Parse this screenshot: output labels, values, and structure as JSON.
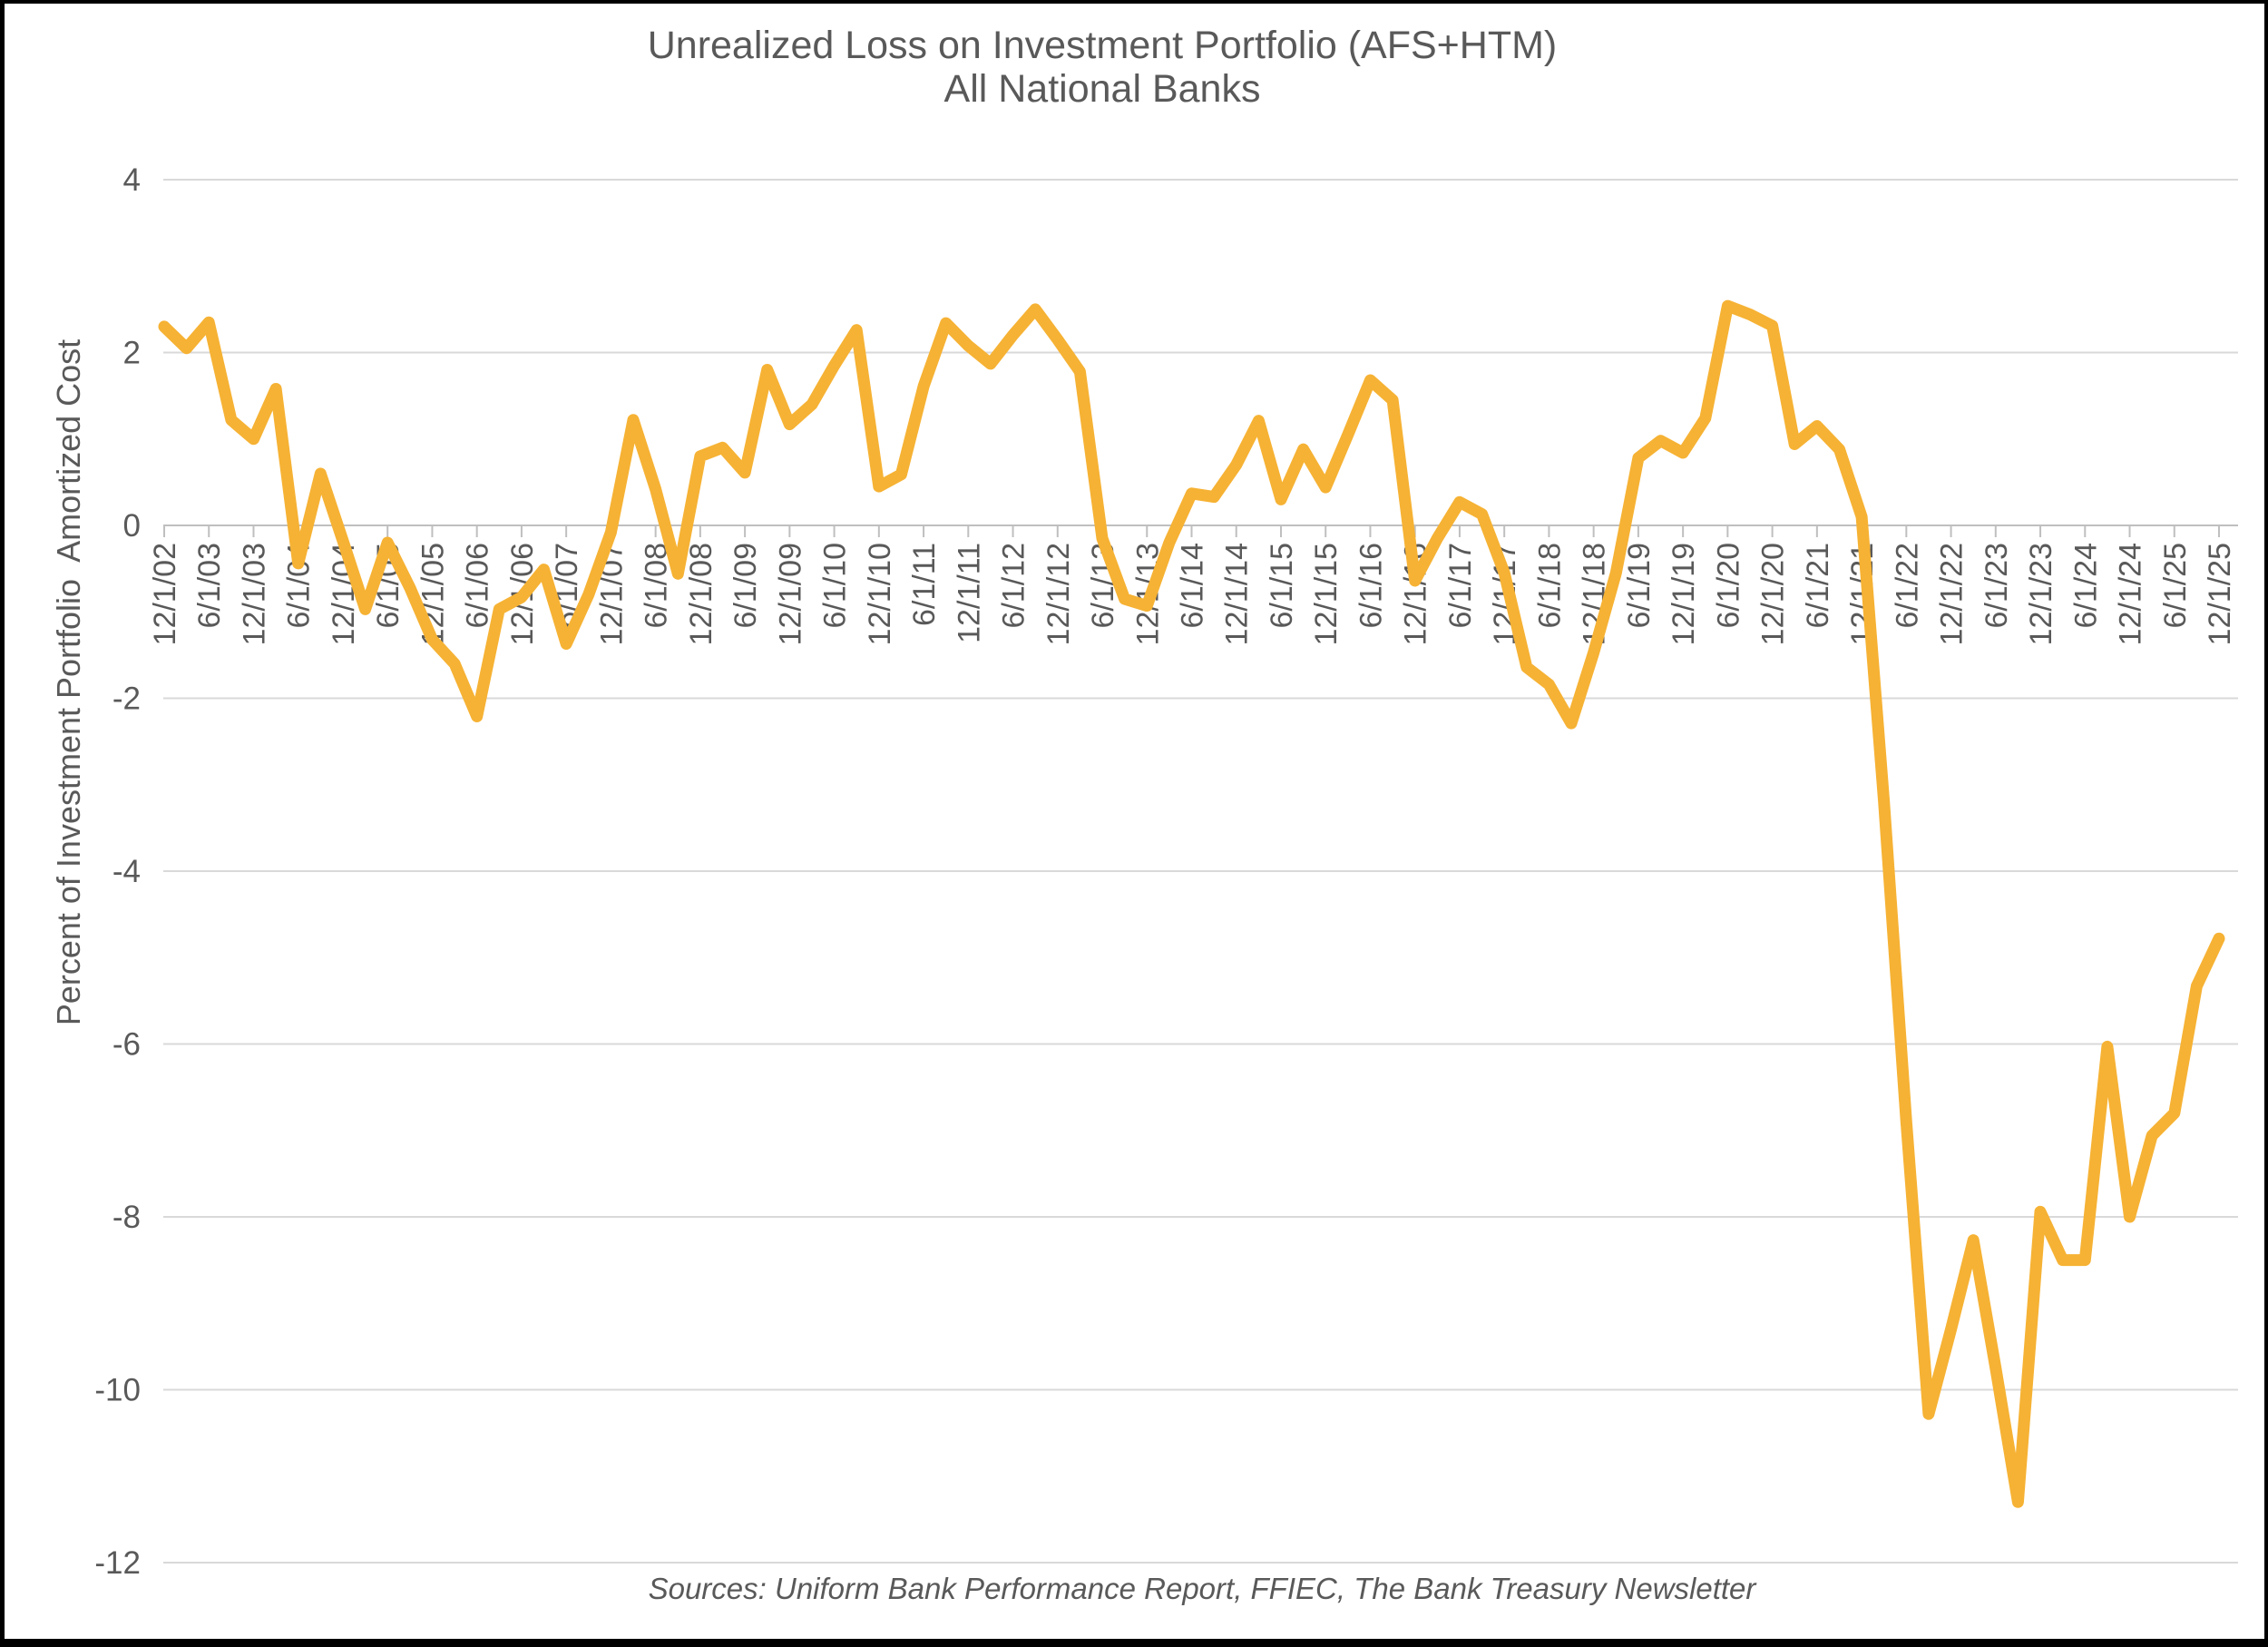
{
  "title": {
    "line1": "Unrealized Loss on Investment Portfolio (AFS+HTM)",
    "line2": "All National Banks"
  },
  "y_axis": {
    "label": "Percent of Investment Portfolio  Amortized Cost",
    "ticks": [
      4,
      2,
      0,
      -2,
      -4,
      -6,
      -8,
      -10,
      -12
    ],
    "min": -12,
    "max": 4
  },
  "x_axis": {
    "labels": [
      "12/1/02",
      "6/1/03",
      "12/1/03",
      "6/1/04",
      "12/1/04",
      "6/1/05",
      "12/1/05",
      "6/1/06",
      "12/1/06",
      "6/1/07",
      "12/1/07",
      "6/1/08",
      "12/1/08",
      "6/1/09",
      "12/1/09",
      "6/1/10",
      "12/1/10",
      "6/1/11",
      "12/1/11",
      "6/1/12",
      "12/1/12",
      "6/1/13",
      "12/1/13",
      "6/1/14",
      "12/1/14",
      "6/1/15",
      "12/1/15",
      "6/1/16",
      "12/1/16",
      "6/1/17",
      "12/1/17",
      "6/1/18",
      "12/1/18",
      "6/1/19",
      "12/1/19",
      "6/1/20",
      "12/1/20",
      "6/1/21",
      "12/1/21",
      "6/1/22",
      "12/1/22",
      "6/1/23",
      "12/1/23",
      "6/1/24",
      "12/1/24",
      "6/1/25",
      "12/1/25"
    ]
  },
  "footer": {
    "sources": "Sources: Uniform Bank Performance Report, FFIEC, The Bank Treasury Newsletter"
  },
  "colors": {
    "line": "#F6B234",
    "grid": "#D9D9D9",
    "axis": "#BFBFBF",
    "tick": "#BFBFBF",
    "text": "#595959"
  },
  "chart_data": {
    "type": "line",
    "title": "Unrealized Loss on Investment Portfolio (AFS+HTM) All National Banks",
    "xlabel": "",
    "ylabel": "Percent of Investment Portfolio Amortized Cost",
    "ylim": [
      -12,
      4
    ],
    "grid": true,
    "legend": false,
    "x": [
      "12/1/02",
      "3/1/03",
      "6/1/03",
      "9/1/03",
      "12/1/03",
      "3/1/04",
      "6/1/04",
      "9/1/04",
      "12/1/04",
      "3/1/05",
      "6/1/05",
      "9/1/05",
      "12/1/05",
      "3/1/06",
      "6/1/06",
      "9/1/06",
      "12/1/06",
      "3/1/07",
      "6/1/07",
      "9/1/07",
      "12/1/07",
      "3/1/08",
      "6/1/08",
      "9/1/08",
      "12/1/08",
      "3/1/09",
      "6/1/09",
      "9/1/09",
      "12/1/09",
      "3/1/10",
      "6/1/10",
      "9/1/10",
      "12/1/10",
      "3/1/11",
      "6/1/11",
      "9/1/11",
      "12/1/11",
      "3/1/12",
      "6/1/12",
      "9/1/12",
      "12/1/12",
      "3/1/13",
      "6/1/13",
      "9/1/13",
      "12/1/13",
      "3/1/14",
      "6/1/14",
      "9/1/14",
      "12/1/14",
      "3/1/15",
      "6/1/15",
      "9/1/15",
      "12/1/15",
      "3/1/16",
      "6/1/16",
      "9/1/16",
      "12/1/16",
      "3/1/17",
      "6/1/17",
      "9/1/17",
      "12/1/17",
      "3/1/18",
      "6/1/18",
      "9/1/18",
      "12/1/18",
      "3/1/19",
      "6/1/19",
      "9/1/19",
      "12/1/19",
      "3/1/20",
      "6/1/20",
      "9/1/20",
      "12/1/20",
      "3/1/21",
      "6/1/21",
      "9/1/21",
      "12/1/21",
      "3/1/22",
      "6/1/22",
      "9/1/22",
      "12/1/22",
      "3/1/23",
      "6/1/23",
      "9/1/23",
      "12/1/23",
      "3/1/24",
      "6/1/24",
      "9/1/24",
      "12/1/24",
      "3/1/25",
      "6/1/25",
      "9/1/25",
      "12/1/25"
    ],
    "values": [
      2.3,
      2.05,
      2.35,
      1.22,
      1.0,
      1.58,
      -0.44,
      0.6,
      -0.18,
      -0.97,
      -0.2,
      -0.72,
      -1.32,
      -1.6,
      -2.21,
      -0.97,
      -0.83,
      -0.51,
      -1.37,
      -0.8,
      -0.08,
      1.22,
      0.42,
      -0.56,
      0.8,
      0.9,
      0.61,
      1.8,
      1.17,
      1.4,
      1.85,
      2.26,
      0.45,
      0.59,
      1.61,
      2.34,
      2.08,
      1.87,
      2.2,
      2.5,
      2.15,
      1.78,
      -0.15,
      -0.85,
      -0.93,
      -0.2,
      0.37,
      0.33,
      0.7,
      1.21,
      0.3,
      0.88,
      0.44,
      1.05,
      1.68,
      1.45,
      -0.64,
      -0.15,
      0.27,
      0.13,
      -0.55,
      -1.64,
      -1.84,
      -2.29,
      -1.47,
      -0.55,
      0.78,
      0.98,
      0.84,
      1.24,
      2.54,
      2.44,
      2.31,
      0.94,
      1.15,
      0.88,
      0.1,
      -3.2,
      -6.9,
      -10.28,
      -9.3,
      -8.27,
      -9.75,
      -11.3,
      -7.94,
      -8.5,
      -8.5,
      -6.03,
      -8.0,
      -7.06,
      -6.8,
      -5.33,
      -4.78
    ]
  }
}
